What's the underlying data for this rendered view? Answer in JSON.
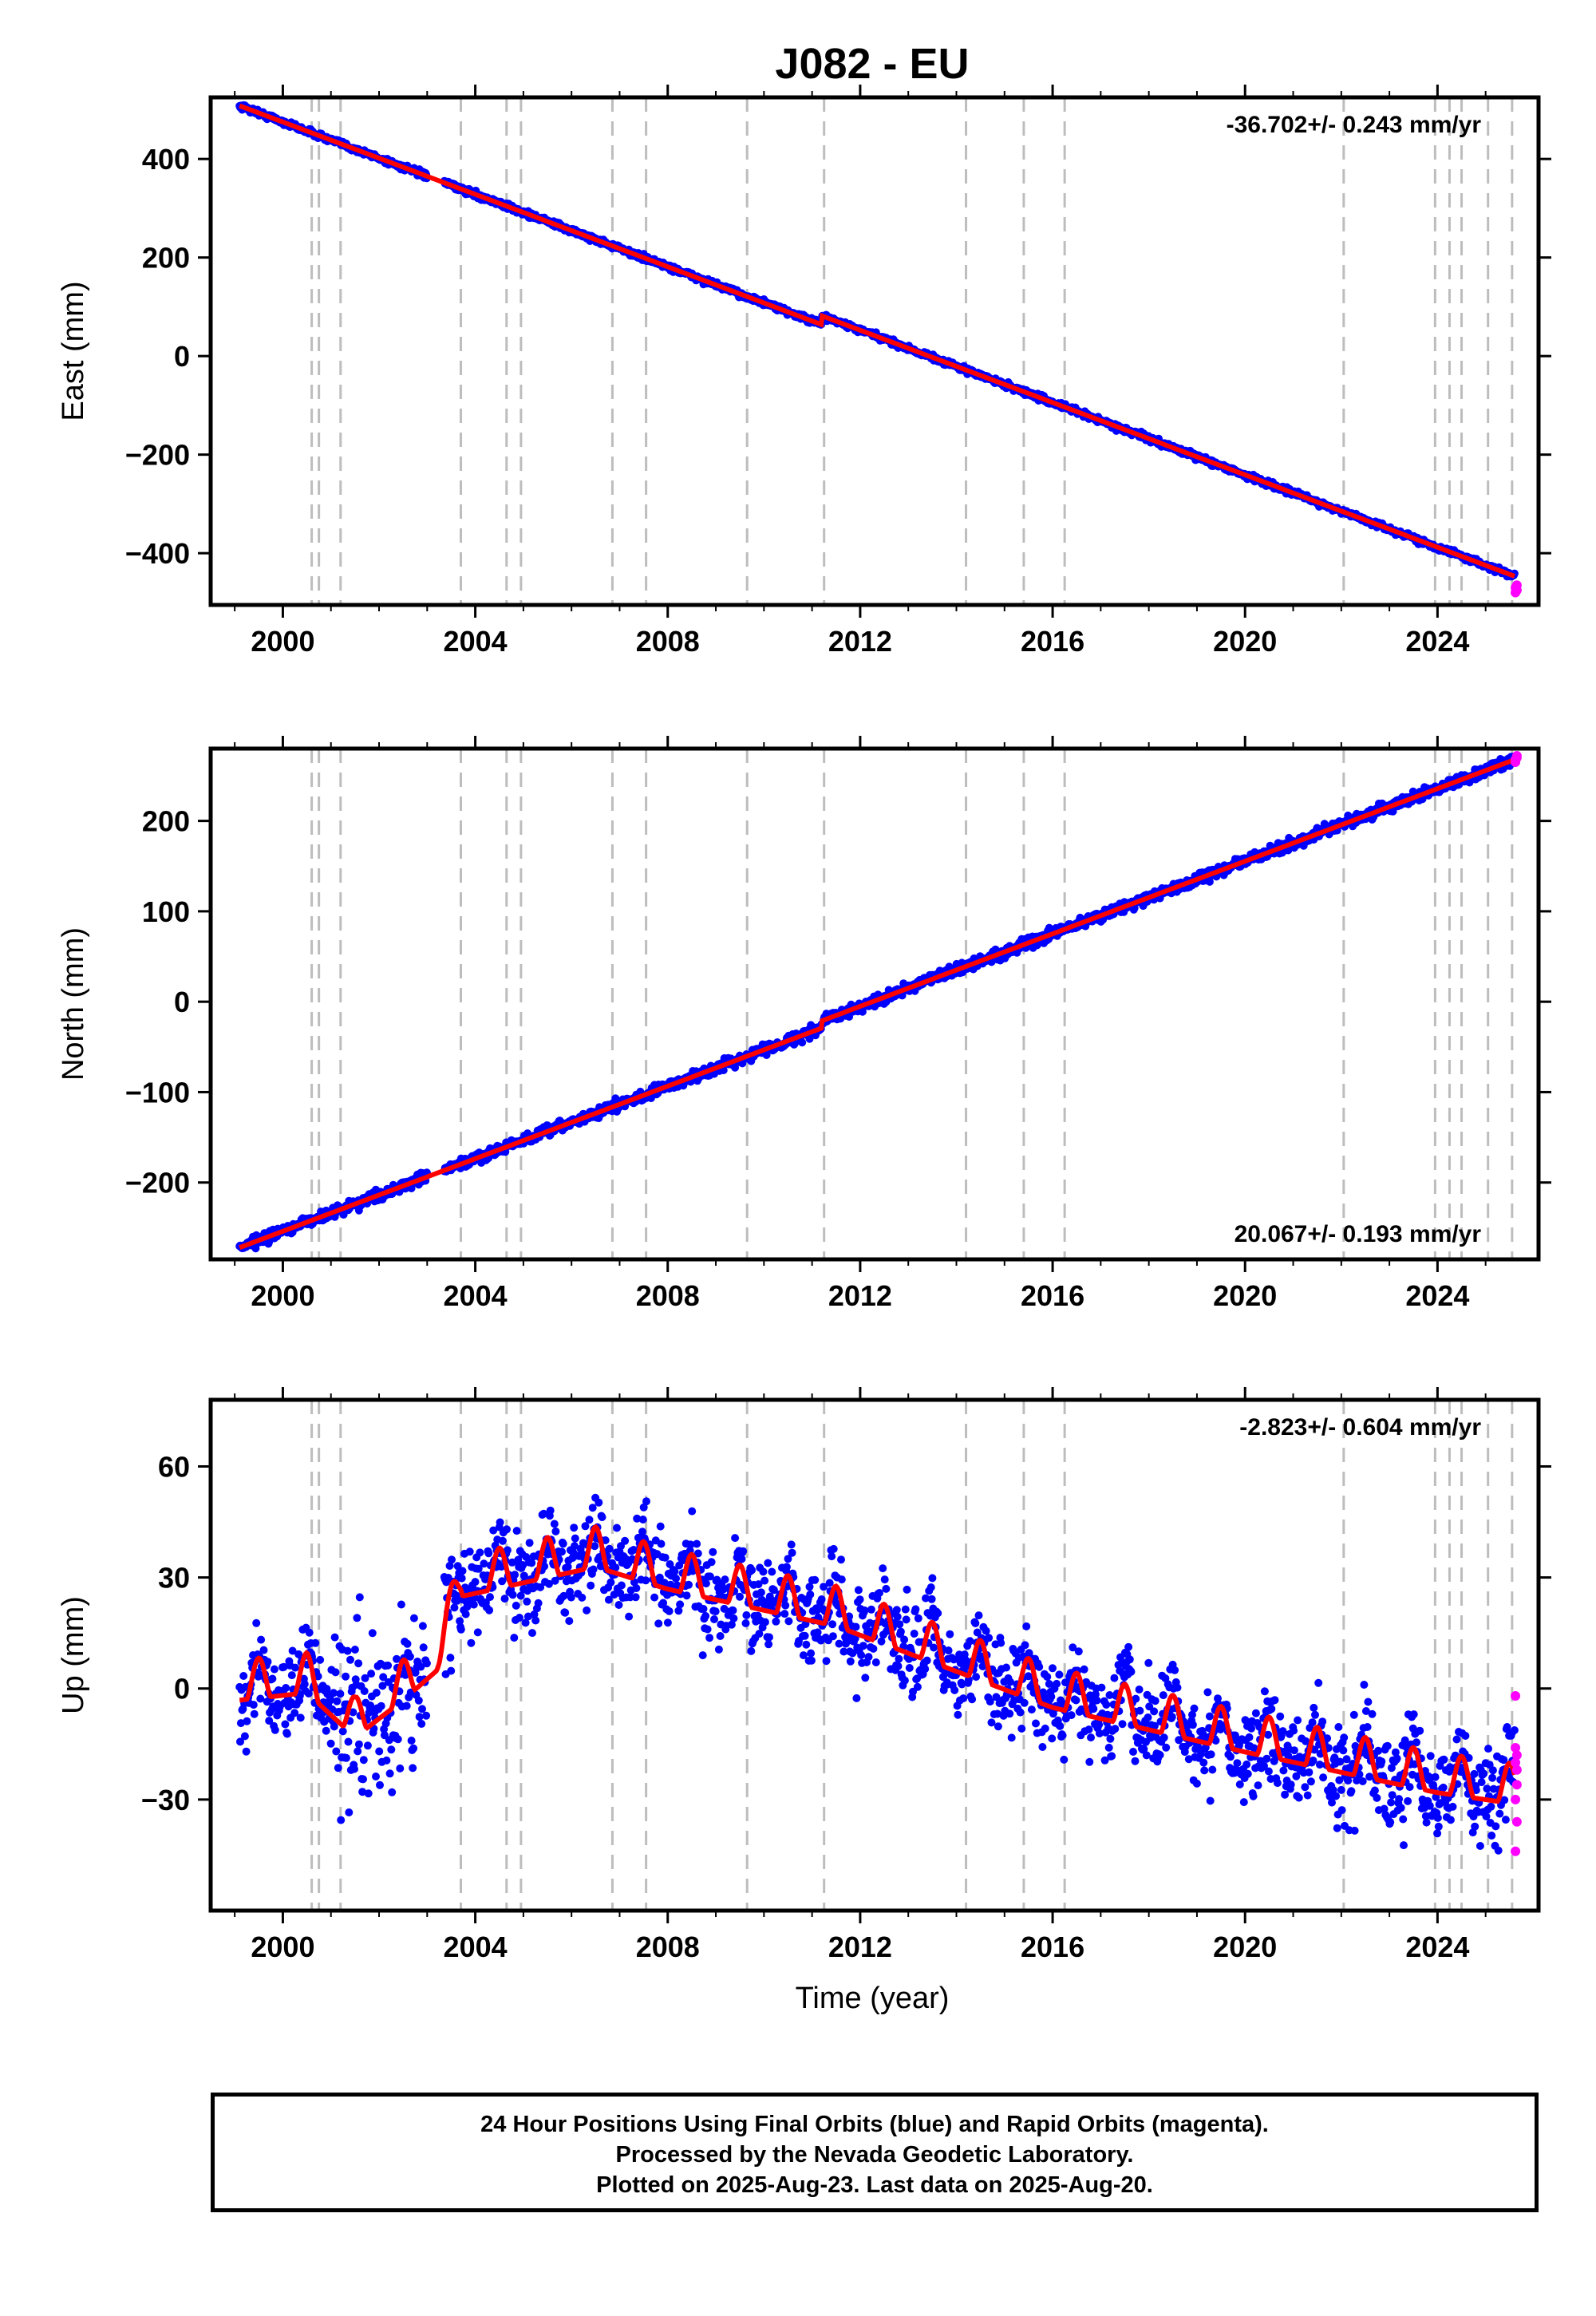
{
  "chart_data": {
    "title": "J082 - EU",
    "xlabel": "Time (year)",
    "x_ticks": [
      2000,
      2004,
      2008,
      2012,
      2016,
      2020,
      2024
    ],
    "xlim": [
      1998.5,
      2026.1
    ],
    "event_lines": [
      2000.6,
      2000.75,
      2001.2,
      2003.7,
      2004.65,
      2004.95,
      2006.85,
      2007.55,
      2009.65,
      2011.25,
      2014.2,
      2015.4,
      2016.25,
      2022.05,
      2023.95,
      2024.25,
      2024.5,
      2025.05,
      2025.55
    ],
    "colors": {
      "final": "#0000ff",
      "rapid": "#ff00ff",
      "model": "#ff0000",
      "event": "#bdbdbd"
    },
    "panels": [
      {
        "type": "scatter",
        "ylabel": "East (mm)",
        "ylim": [
          -505,
          525
        ],
        "y_ticks": [
          -400,
          -200,
          0,
          200,
          400
        ],
        "rate_text": "-36.702+/- 0.243 mm/yr",
        "rate_position": "top-right",
        "start_year": 1999.1,
        "end_year": 2025.6,
        "start_value": 508,
        "rate": -36.702,
        "offsets": [
          {
            "year": 2011.2,
            "value": 18
          }
        ],
        "seasonal_amplitude": 0,
        "noise": 3,
        "rapid_values": [
          -470,
          -475,
          -480,
          -465
        ]
      },
      {
        "type": "scatter",
        "ylabel": "North (mm)",
        "ylim": [
          -285,
          280
        ],
        "y_ticks": [
          -200,
          -100,
          0,
          100,
          200
        ],
        "rate_text": "20.067+/- 0.193 mm/yr",
        "rate_position": "bottom-right",
        "start_year": 1999.1,
        "end_year": 2025.6,
        "start_value": -272,
        "rate": 20.067,
        "offsets": [
          {
            "year": 2011.2,
            "value": 8
          }
        ],
        "seasonal_amplitude": 0,
        "noise": 3,
        "rapid_values": [
          268,
          272,
          265,
          270
        ]
      },
      {
        "type": "scatter",
        "ylabel": "Up (mm)",
        "ylim": [
          -60,
          78
        ],
        "y_ticks": [
          -30,
          0,
          30,
          60
        ],
        "rate_text": "-2.823+/- 0.604 mm/yr",
        "rate_position": "top-right",
        "start_year": 1999.1,
        "end_year": 2025.6,
        "trend_points": [
          [
            1999.1,
            0
          ],
          [
            2000.5,
            2
          ],
          [
            2001.5,
            -10
          ],
          [
            2002.5,
            0
          ],
          [
            2003.2,
            8
          ],
          [
            2003.7,
            28
          ],
          [
            2006.5,
            36
          ],
          [
            2008.0,
            30
          ],
          [
            2011.5,
            20
          ],
          [
            2016.0,
            -2
          ],
          [
            2020.0,
            -14
          ],
          [
            2024.0,
            -25
          ],
          [
            2025.6,
            -28
          ]
        ],
        "seasonal_amplitude": 9,
        "noise": 6,
        "rapid_values": [
          -2,
          -18,
          -20,
          -26,
          -30,
          -36,
          -44,
          -22,
          -16
        ]
      }
    ]
  },
  "footer": {
    "line1": "24 Hour Positions Using Final Orbits (blue) and Rapid Orbits (magenta).",
    "line2": "Processed by the Nevada Geodetic Laboratory.",
    "line3": "Plotted on 2025-Aug-23. Last data on 2025-Aug-20."
  }
}
